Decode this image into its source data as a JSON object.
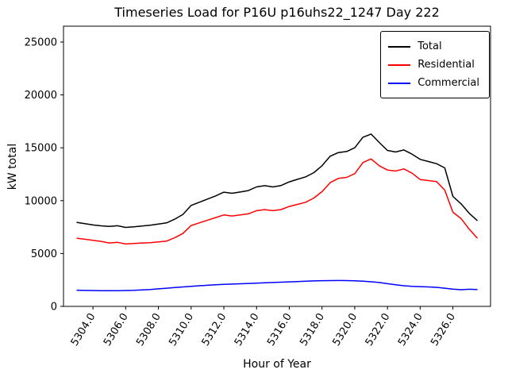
{
  "chart_data": {
    "type": "line",
    "title": "Timeseries Load for P16U p16uhs22_1247  Day 222",
    "xlabel": "Hour of Year",
    "ylabel": "kW total",
    "grid": false,
    "legend_position": "upper right",
    "xlim": [
      5302.2,
      5328.3
    ],
    "ylim": [
      0,
      26500
    ],
    "yticks": [
      0,
      5000,
      10000,
      15000,
      20000,
      25000
    ],
    "xticks": [
      5304,
      5306,
      5308,
      5310,
      5312,
      5314,
      5316,
      5318,
      5320,
      5322,
      5324,
      5326
    ],
    "xtick_labels": [
      "5304.0",
      "5306.0",
      "5308.0",
      "5310.0",
      "5312.0",
      "5314.0",
      "5316.0",
      "5318.0",
      "5320.0",
      "5322.0",
      "5324.0",
      "5326.0"
    ],
    "x": [
      5303.0,
      5303.5,
      5304.0,
      5304.5,
      5305.0,
      5305.5,
      5306.0,
      5306.5,
      5307.0,
      5307.5,
      5308.0,
      5308.5,
      5309.0,
      5309.5,
      5310.0,
      5310.5,
      5311.0,
      5311.5,
      5312.0,
      5312.5,
      5313.0,
      5313.5,
      5314.0,
      5314.5,
      5315.0,
      5315.5,
      5316.0,
      5316.5,
      5317.0,
      5317.5,
      5318.0,
      5318.5,
      5319.0,
      5319.5,
      5320.0,
      5320.5,
      5321.0,
      5321.5,
      5322.0,
      5322.5,
      5323.0,
      5323.5,
      5324.0,
      5324.5,
      5325.0,
      5325.5,
      5326.0,
      5326.5,
      5327.0,
      5327.5
    ],
    "series": [
      {
        "name": "Total",
        "color": "#000000",
        "values": [
          7950,
          7820,
          7700,
          7620,
          7560,
          7630,
          7470,
          7520,
          7600,
          7680,
          7790,
          7900,
          8250,
          8700,
          9550,
          9850,
          10150,
          10450,
          10800,
          10700,
          10820,
          10950,
          11300,
          11420,
          11300,
          11430,
          11780,
          12020,
          12250,
          12650,
          13300,
          14200,
          14550,
          14650,
          15000,
          16000,
          16300,
          15500,
          14750,
          14600,
          14800,
          14400,
          13900,
          13700,
          13500,
          13100,
          10400,
          9700,
          8800,
          8100
        ]
      },
      {
        "name": "Residential",
        "color": "#ff0000",
        "values": [
          6450,
          6350,
          6250,
          6150,
          6000,
          6060,
          5900,
          5950,
          6000,
          6030,
          6100,
          6180,
          6500,
          6900,
          7650,
          7900,
          8150,
          8400,
          8650,
          8550,
          8650,
          8750,
          9050,
          9150,
          9050,
          9160,
          9450,
          9650,
          9850,
          10250,
          10850,
          11700,
          12100,
          12200,
          12550,
          13600,
          13950,
          13300,
          12900,
          12800,
          13000,
          12600,
          12000,
          11900,
          11800,
          11000,
          8900,
          8300,
          7300,
          6450
        ]
      },
      {
        "name": "Commercial",
        "color": "#0000ff",
        "values": [
          1530,
          1510,
          1500,
          1490,
          1480,
          1490,
          1500,
          1520,
          1560,
          1600,
          1660,
          1720,
          1780,
          1840,
          1900,
          1950,
          2000,
          2040,
          2080,
          2110,
          2140,
          2170,
          2200,
          2230,
          2260,
          2290,
          2320,
          2350,
          2380,
          2410,
          2430,
          2440,
          2450,
          2440,
          2420,
          2390,
          2330,
          2260,
          2150,
          2050,
          1950,
          1900,
          1870,
          1840,
          1800,
          1720,
          1640,
          1580,
          1620,
          1600
        ]
      }
    ]
  }
}
